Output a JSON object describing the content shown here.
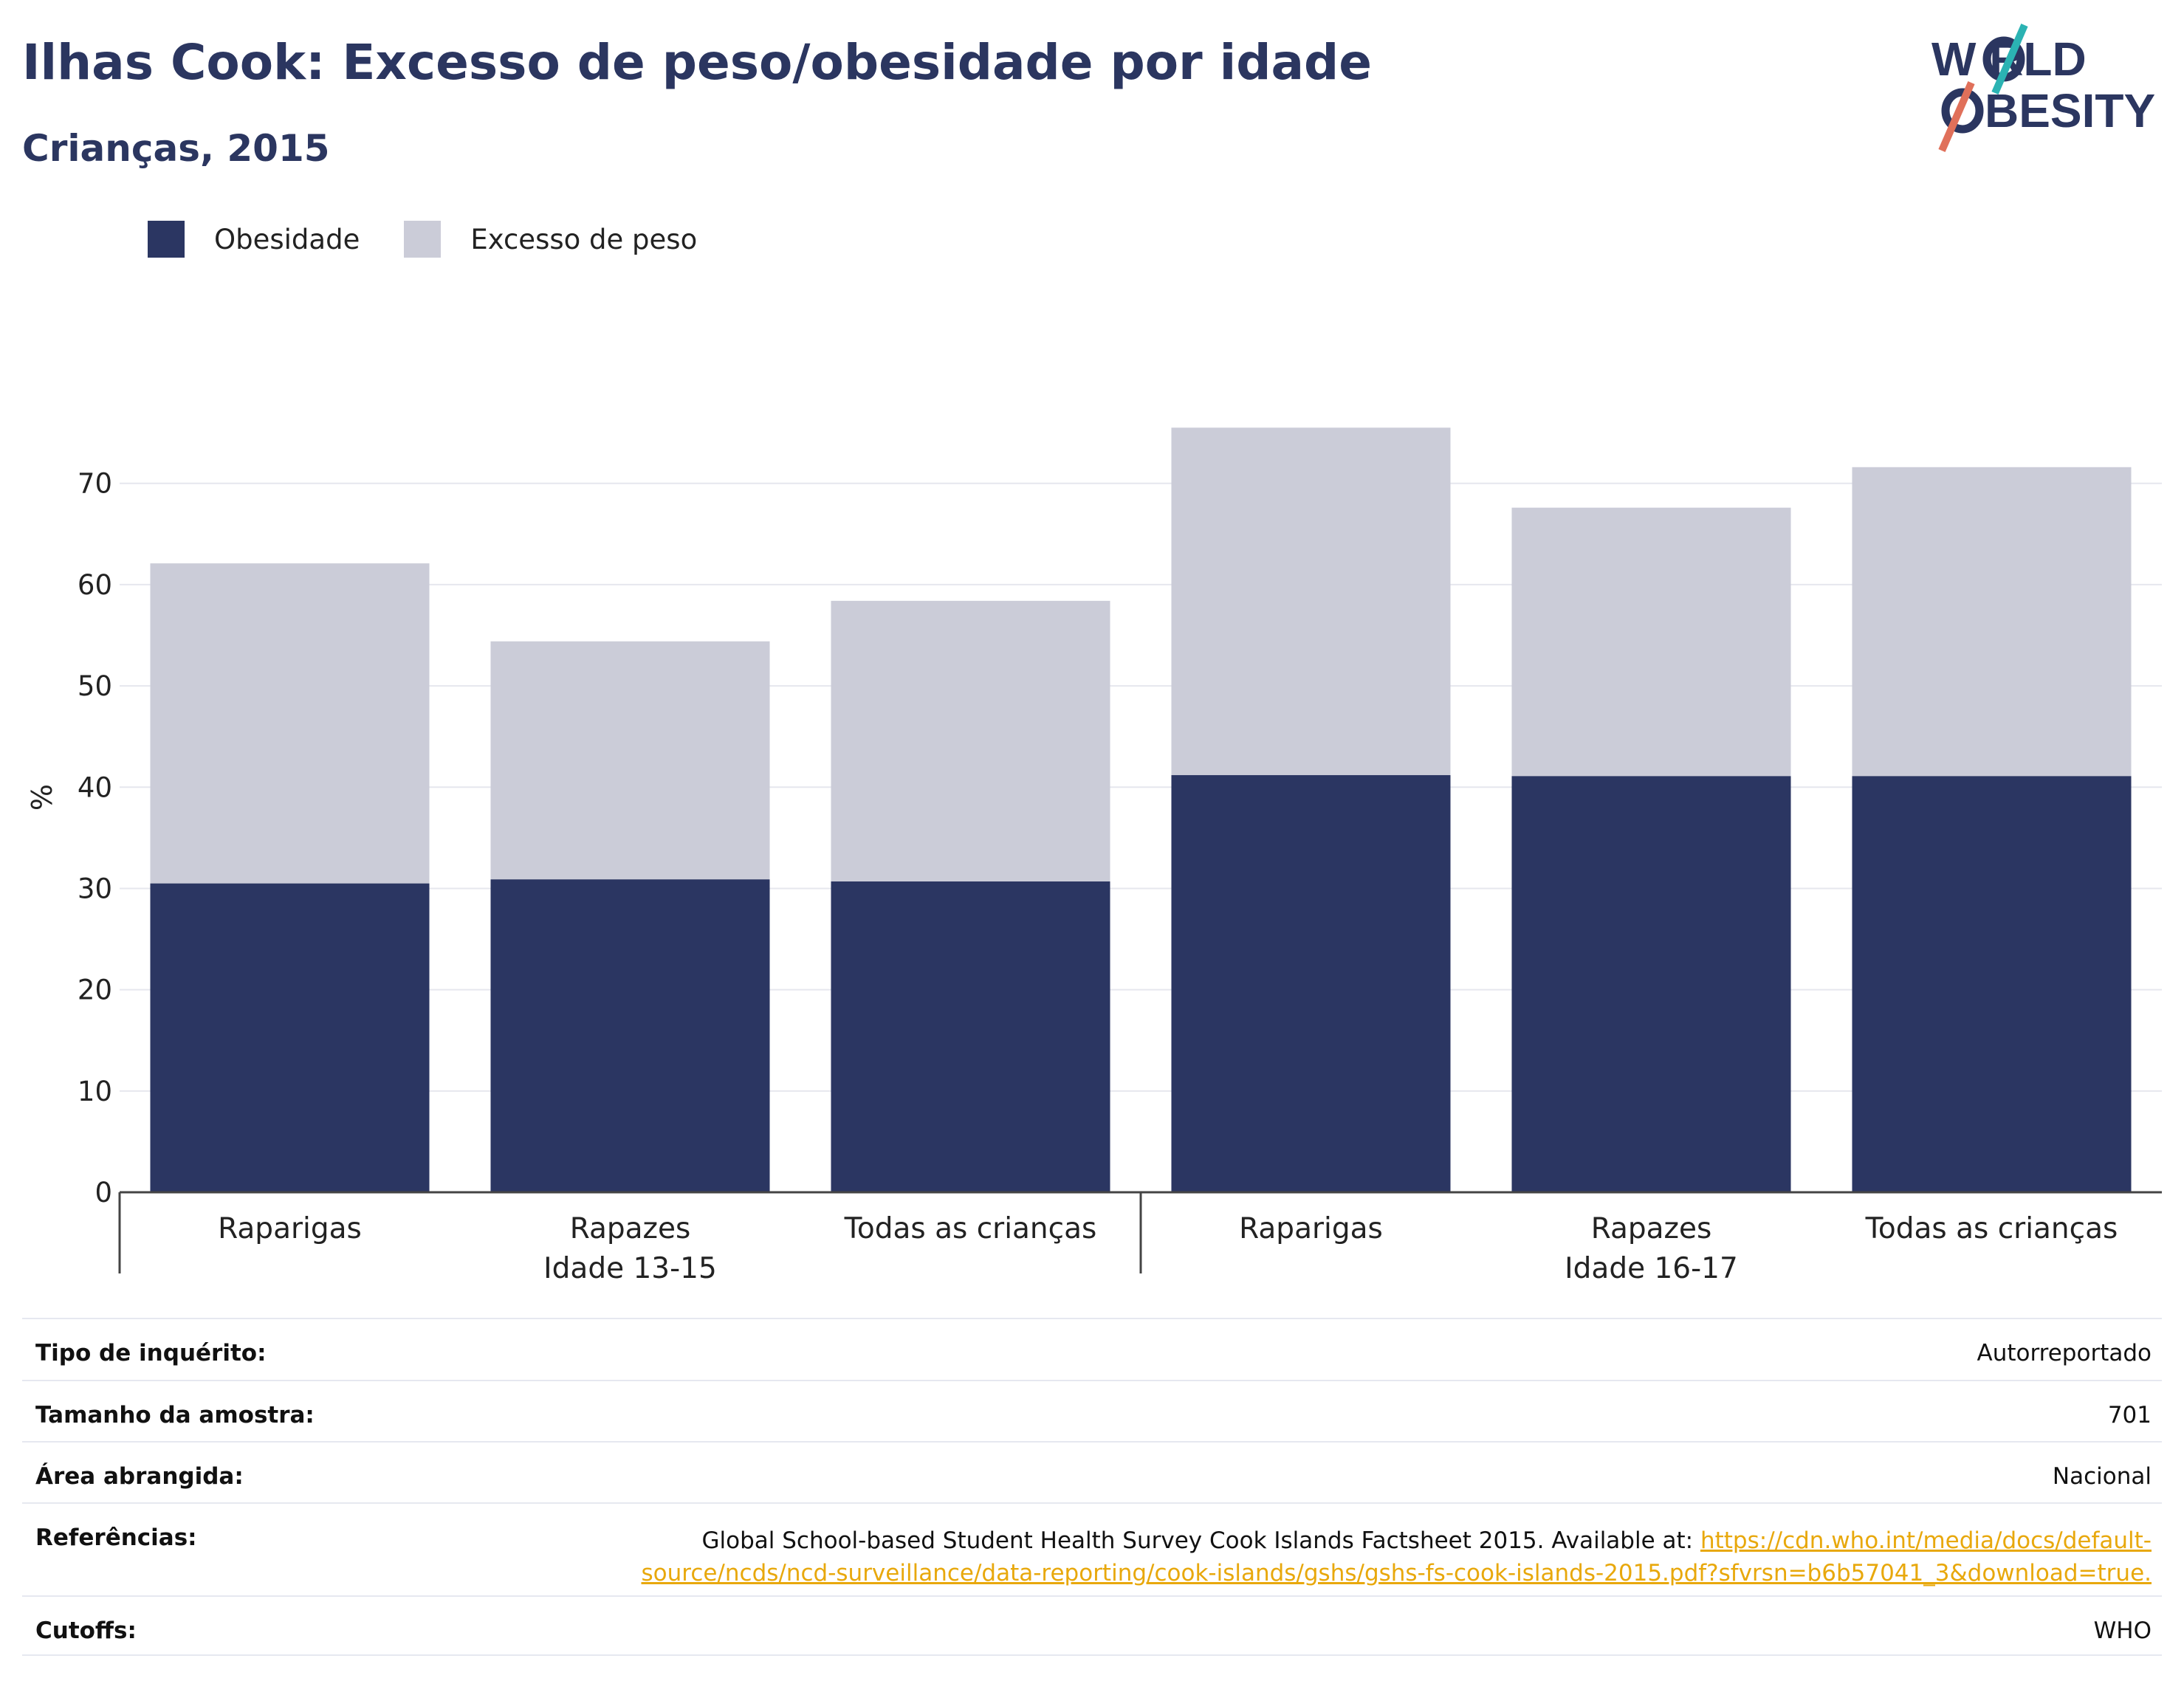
{
  "header": {
    "title": "Ilhas Cook: Excesso de peso/obesidade por idade",
    "subtitle": "Crianças, 2015"
  },
  "logo": {
    "line1": "W RLD",
    "line2": "BESITY",
    "text": "WORLD OBESITY",
    "colors": {
      "text": "#2b3660",
      "teal": "#2bb3b3",
      "coral": "#e0705a"
    }
  },
  "legend": [
    {
      "label": "Obesidade",
      "color": "#2b3662"
    },
    {
      "label": "Excesso de peso",
      "color": "#cbccd8"
    }
  ],
  "chart_data": {
    "type": "bar",
    "stacked": true,
    "ylabel": "%",
    "ylim": [
      0,
      78
    ],
    "yticks": [
      0,
      10,
      20,
      30,
      40,
      50,
      60,
      70
    ],
    "grid": true,
    "legend_position": "top-left",
    "groups": [
      {
        "label": "Idade 13-15",
        "categories": [
          "Raparigas",
          "Rapazes",
          "Todas as crianças"
        ]
      },
      {
        "label": "Idade 16-17",
        "categories": [
          "Raparigas",
          "Rapazes",
          "Todas as crianças"
        ]
      }
    ],
    "categories": [
      "Raparigas",
      "Rapazes",
      "Todas as crianças",
      "Raparigas",
      "Rapazes",
      "Todas as crianças"
    ],
    "series": [
      {
        "name": "Obesidade",
        "color": "#2b3662",
        "values": [
          30.5,
          30.9,
          30.7,
          41.2,
          41.1,
          41.1
        ]
      },
      {
        "name": "Excesso de peso",
        "color": "#cbccd8",
        "values": [
          31.6,
          23.5,
          27.7,
          34.3,
          26.5,
          30.5
        ]
      }
    ]
  },
  "meta": {
    "rows": [
      {
        "label": "Tipo de inquérito:",
        "value": "Autorreportado"
      },
      {
        "label": "Tamanho da amostra:",
        "value": "701"
      },
      {
        "label": "Área abrangida:",
        "value": "Nacional"
      }
    ],
    "references": {
      "label": "Referências:",
      "text": "Global School-based Student Health Survey Cook Islands Factsheet 2015. Available at: ",
      "link": "https://cdn.who.int/media/docs/default-source/ncds/ncd-surveillance/data-reporting/cook-islands/gshs/gshs-fs-cook-islands-2015.pdf?sfvrsn=b6b57041_3&download=true."
    },
    "cutoffs": {
      "label": "Cutoffs:",
      "value": "WHO"
    }
  }
}
